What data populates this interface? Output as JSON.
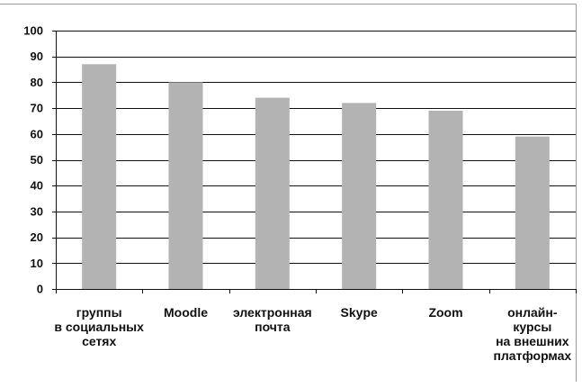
{
  "chart_data": {
    "type": "bar",
    "title": "",
    "xlabel": "",
    "ylabel": "",
    "categories": [
      [
        "группы",
        "в социальных",
        "сетях"
      ],
      [
        "Moodle"
      ],
      [
        "электронная",
        "почта"
      ],
      [
        "Skype"
      ],
      [
        "Zoom"
      ],
      [
        "онлайн-",
        "курсы",
        "на внешних",
        "платформах"
      ]
    ],
    "values": [
      87,
      80,
      74,
      72,
      69,
      59
    ],
    "ylim": [
      0,
      100
    ],
    "yticks": [
      0,
      10,
      20,
      30,
      40,
      50,
      60,
      70,
      80,
      90,
      100
    ],
    "grid": true,
    "legend": "none",
    "colors": {
      "bar": "#b3b3b3",
      "grid": "#111111",
      "axis": "#111111",
      "frame": "#9a9a9a"
    }
  }
}
